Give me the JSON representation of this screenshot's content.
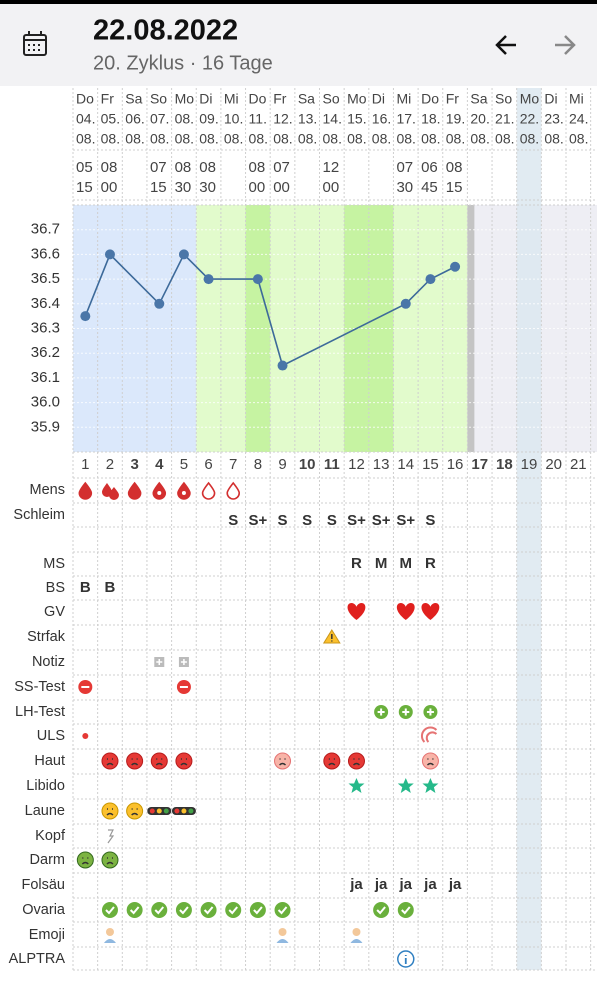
{
  "header": {
    "title": "22.08.2022",
    "subtitle": "20. Zyklus · 16 Tage"
  },
  "days": [
    {
      "n": 1,
      "weekday": "Do",
      "date": "04.",
      "month": "08.",
      "time": [
        "05",
        "15"
      ]
    },
    {
      "n": 2,
      "weekday": "Fr",
      "date": "05.",
      "month": "08.",
      "time": [
        "08",
        "00"
      ]
    },
    {
      "n": 3,
      "weekday": "Sa",
      "date": "06.",
      "month": "08.",
      "color": "#d9342b"
    },
    {
      "n": 4,
      "weekday": "So",
      "date": "07.",
      "month": "08.",
      "time": [
        "07",
        "15"
      ],
      "color": "#d9342b"
    },
    {
      "n": 5,
      "weekday": "Mo",
      "date": "08.",
      "month": "08.",
      "time": [
        "08",
        "30"
      ]
    },
    {
      "n": 6,
      "weekday": "Di",
      "date": "09.",
      "month": "08.",
      "time": [
        "08",
        "30"
      ]
    },
    {
      "n": 7,
      "weekday": "Mi",
      "date": "10.",
      "month": "08."
    },
    {
      "n": 8,
      "weekday": "Do",
      "date": "11.",
      "month": "08.",
      "time": [
        "08",
        "00"
      ]
    },
    {
      "n": 9,
      "weekday": "Fr",
      "date": "12.",
      "month": "08.",
      "time": [
        "07",
        "00"
      ]
    },
    {
      "n": 10,
      "weekday": "Sa",
      "date": "13.",
      "month": "08.",
      "color": "#d9342b"
    },
    {
      "n": 11,
      "weekday": "So",
      "date": "14.",
      "month": "08.",
      "time": [
        "12",
        "00"
      ],
      "color": "#d9342b"
    },
    {
      "n": 12,
      "weekday": "Mo",
      "date": "15.",
      "month": "08."
    },
    {
      "n": 13,
      "weekday": "Di",
      "date": "16.",
      "month": "08."
    },
    {
      "n": 14,
      "weekday": "Mi",
      "date": "17.",
      "month": "08.",
      "time": [
        "07",
        "30"
      ]
    },
    {
      "n": 15,
      "weekday": "Do",
      "date": "18.",
      "month": "08.",
      "time": [
        "06",
        "45"
      ]
    },
    {
      "n": 16,
      "weekday": "Fr",
      "date": "19.",
      "month": "08.",
      "time": [
        "08",
        "15"
      ]
    },
    {
      "n": 17,
      "weekday": "Sa",
      "date": "20.",
      "month": "08.",
      "color": "#d9342b"
    },
    {
      "n": 18,
      "weekday": "So",
      "date": "21.",
      "month": "08.",
      "color": "#d9342b"
    },
    {
      "n": 19,
      "weekday": "Mo",
      "date": "22.",
      "month": "08."
    },
    {
      "n": 20,
      "weekday": "Di",
      "date": "23.",
      "month": "08."
    },
    {
      "n": 21,
      "weekday": "Mi",
      "date": "24.",
      "month": "08."
    }
  ],
  "chart_data": {
    "type": "line",
    "x": [
      1,
      2,
      4,
      5,
      6,
      8,
      9,
      14,
      15,
      16
    ],
    "values": [
      36.35,
      36.6,
      36.4,
      36.6,
      36.5,
      36.5,
      36.15,
      36.4,
      36.5,
      36.55
    ],
    "color": "#3d6a9a",
    "ylim": [
      35.8,
      36.8
    ],
    "yticks": [
      35.9,
      {
        "value": 36,
        "label": "36.0"
      },
      36.1,
      36.2,
      36.3,
      36.4,
      36.5,
      36.6,
      36.7
    ]
  },
  "rows": [
    {
      "label": "Mens"
    },
    {
      "label": "Schleim",
      "cells": [
        null,
        null,
        null,
        null,
        null,
        null,
        "S",
        "S+",
        "S",
        "S",
        "S",
        "S+",
        "S+",
        "S+",
        "S",
        null
      ]
    },
    {
      "label": "MS",
      "cells": [
        null,
        null,
        null,
        null,
        null,
        null,
        null,
        null,
        null,
        null,
        null,
        "R",
        "M",
        "M",
        "R",
        null
      ]
    },
    {
      "label": "BS",
      "cells": [
        "B",
        "B",
        null,
        null,
        null,
        null,
        null,
        null,
        null,
        null,
        null,
        null,
        null,
        null,
        null,
        null
      ]
    },
    {
      "label": "GV"
    },
    {
      "label": "Strfak"
    },
    {
      "label": "Notiz"
    },
    {
      "label": "SS-Test"
    },
    {
      "label": "LH-Test"
    },
    {
      "label": "ULS"
    },
    {
      "label": "Haut"
    },
    {
      "label": "Libido"
    },
    {
      "label": "Laune"
    },
    {
      "label": "Kopf"
    },
    {
      "label": "Darm"
    },
    {
      "label": "Folsäu",
      "cells": [
        null,
        null,
        null,
        null,
        null,
        null,
        null,
        null,
        null,
        null,
        null,
        "ja",
        "ja",
        "ja",
        "ja",
        "ja"
      ]
    },
    {
      "label": "Ovaria"
    },
    {
      "label": "Emoji"
    },
    {
      "label": "ALPTRA"
    }
  ]
}
